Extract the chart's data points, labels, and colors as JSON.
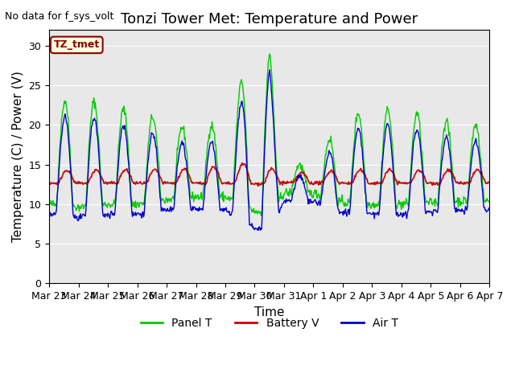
{
  "title": "Tonzi Tower Met: Temperature and Power",
  "no_data_label": "No data for f_sys_volt",
  "dataset_label": "TZ_tmet",
  "xlabel": "Time",
  "ylabel": "Temperature (C) / Power (V)",
  "ylim": [
    0,
    32
  ],
  "yticks": [
    0,
    5,
    10,
    15,
    20,
    25,
    30
  ],
  "x_labels": [
    "Mar 23",
    "Mar 24",
    "Mar 25",
    "Mar 26",
    "Mar 27",
    "Mar 28",
    "Mar 29",
    "Mar 30",
    "Mar 31",
    "Apr 1",
    "Apr 2",
    "Apr 3",
    "Apr 4",
    "Apr 5",
    "Apr 6",
    "Apr 7"
  ],
  "n_days": 15,
  "background_color": "#e8e8e8",
  "panel_color": "#00cc00",
  "battery_color": "#cc0000",
  "air_color": "#0000cc",
  "legend_labels": [
    "Panel T",
    "Battery V",
    "Air T"
  ],
  "title_fontsize": 13,
  "axis_fontsize": 11,
  "tick_fontsize": 9
}
